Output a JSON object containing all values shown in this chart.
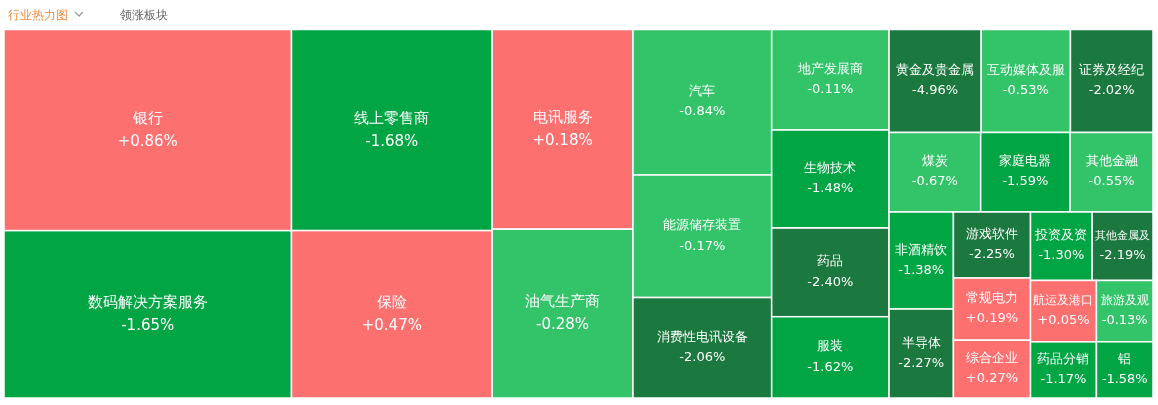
{
  "chart_data": {
    "type": "other",
    "title": "行业热力图",
    "subtitle": "领涨板块",
    "categories": [
      "银行",
      "数码解决方案服务",
      "线上零售商",
      "保险",
      "电讯服务",
      "油气生产商",
      "汽车",
      "能源储存装置",
      "消费性电讯设备",
      "地产发展商",
      "生物技术",
      "药品",
      "服装",
      "黄金及贵金属",
      "互动媒体及服",
      "证券及经纪",
      "煤炭",
      "家庭电器",
      "其他金融",
      "非酒精饮",
      "半导体",
      "游戏软件",
      "常规电力",
      "综合企业",
      "投资及资",
      "其他金属及",
      "航运及港口",
      "药品分销",
      "旅游及观",
      "铝"
    ],
    "values": [
      0.86,
      -1.65,
      -1.68,
      0.47,
      0.18,
      -0.28,
      -0.84,
      -0.17,
      -2.06,
      -0.11,
      -1.48,
      -2.4,
      -1.62,
      -4.96,
      -0.53,
      -2.02,
      -0.67,
      -1.59,
      -0.55,
      -1.38,
      -2.27,
      -2.25,
      0.19,
      0.27,
      -1.3,
      -2.19,
      0.05,
      -1.17,
      -0.13,
      -1.58
    ],
    "value_labels": [
      "+0.86%",
      "-1.65%",
      "-1.68%",
      "+0.47%",
      "+0.18%",
      "-0.28%",
      "-0.84%",
      "-0.17%",
      "-2.06%",
      "-0.11%",
      "-1.48%",
      "-2.40%",
      "-1.62%",
      "-4.96%",
      "-0.53%",
      "-2.02%",
      "-0.67%",
      "-1.59%",
      "-0.55%",
      "-1.38%",
      "-2.27%",
      "-2.25%",
      "+0.19%",
      "+0.27%",
      "-1.30%",
      "-2.19%",
      "+0.05%",
      "-1.17%",
      "-0.13%",
      "-1.58%"
    ],
    "colors": [
      "#fd7070",
      "#01a544",
      "#01a544",
      "#fd7070",
      "#fd7070",
      "#33c46a",
      "#33c46a",
      "#33c46a",
      "#1b783e",
      "#33c46a",
      "#01a544",
      "#1b783e",
      "#01a544",
      "#1b783e",
      "#33c46a",
      "#1b783e",
      "#33c46a",
      "#01a544",
      "#33c46a",
      "#01a544",
      "#1b783e",
      "#1b783e",
      "#fd7070",
      "#fd7070",
      "#01a544",
      "#1b783e",
      "#fd7070",
      "#01a544",
      "#33c46a",
      "#01a544"
    ]
  }
}
